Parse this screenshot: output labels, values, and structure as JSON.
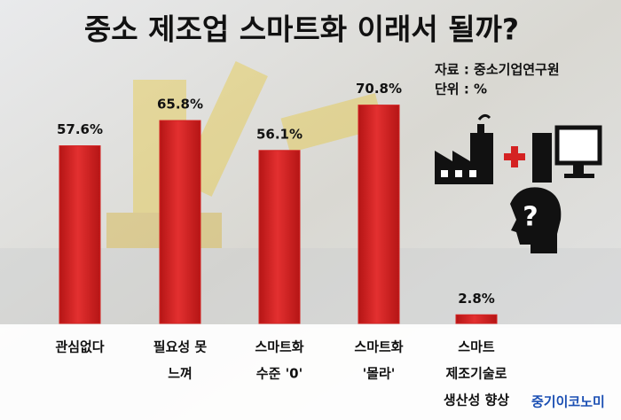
{
  "chart_data": {
    "type": "bar",
    "title": "중소 제조업 스마트화 이래서 될까?",
    "source": "자료 : 중소기업연구원",
    "unit": "단위 : %",
    "brand": "중기이코노미",
    "categories": [
      [
        "관심없다"
      ],
      [
        "필요성 못",
        "느껴"
      ],
      [
        "스마트화",
        "수준 '0'"
      ],
      [
        "스마트화",
        "'몰라'"
      ],
      [
        "스마트",
        "제조기술로",
        "생산성 향상"
      ]
    ],
    "values": [
      57.6,
      65.8,
      56.1,
      70.8,
      2.8
    ],
    "value_labels": [
      "57.6%",
      "65.8%",
      "56.1%",
      "70.8%",
      "2.8%"
    ],
    "color": "#d42222"
  }
}
